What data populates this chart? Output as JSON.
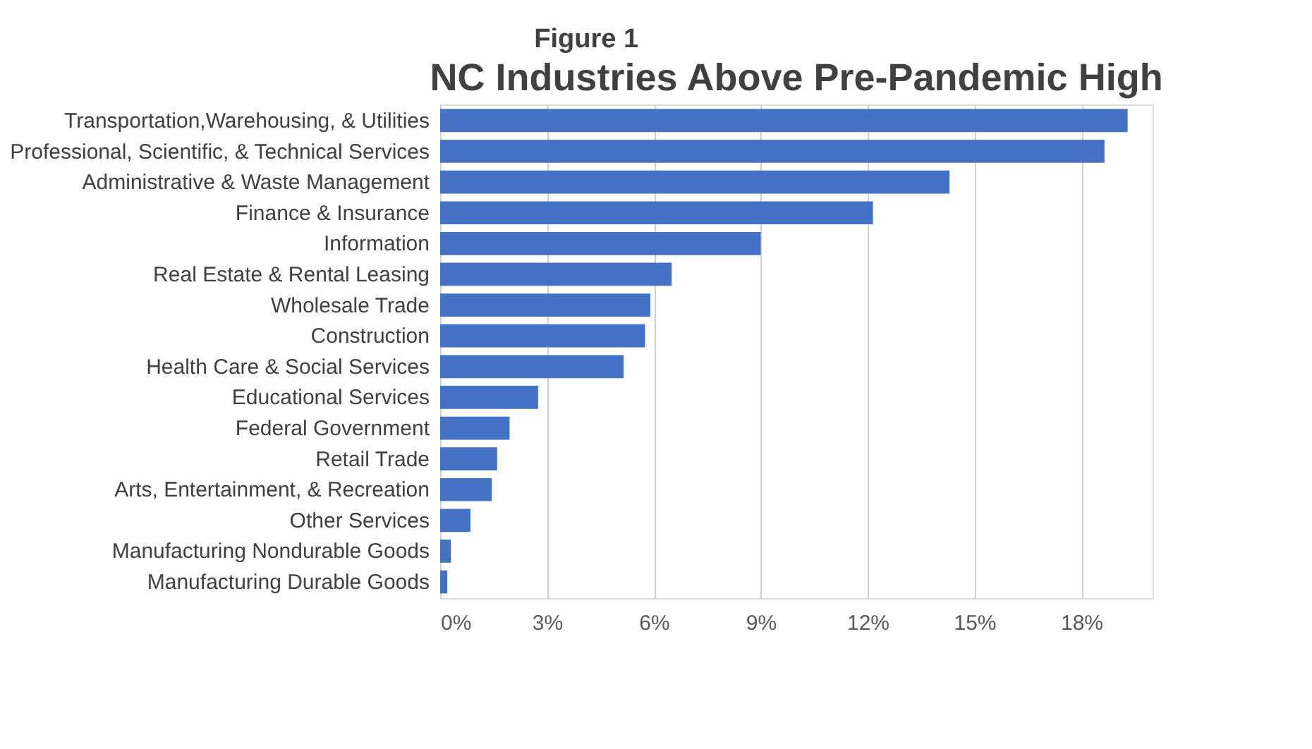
{
  "chart_data": {
    "type": "bar",
    "orientation": "horizontal",
    "subtitle": "Figure 1",
    "title": "NC Industries Above Pre-Pandemic High",
    "categories": [
      "Transportation,Warehousing, & Utilities",
      "Professional, Scientific, & Technical Services",
      "Administrative & Waste Management",
      "Finance & Insurance",
      "Information",
      "Real Estate & Rental Leasing",
      "Wholesale Trade",
      "Construction",
      "Health Care & Social Services",
      "Educational Services",
      "Federal Government",
      "Retail Trade",
      "Arts, Entertainment, & Recreation",
      "Other Services",
      "Manufacturing Nondurable Goods",
      "Manufacturing Durable Goods"
    ],
    "values": [
      19.3,
      18.65,
      14.3,
      12.15,
      9.0,
      6.5,
      5.9,
      5.75,
      5.15,
      2.75,
      1.95,
      1.6,
      1.45,
      0.85,
      0.3,
      0.2
    ],
    "color": "#4472c4",
    "xlim": [
      0,
      20
    ],
    "xticks": [
      {
        "value": 0,
        "label": "0%"
      },
      {
        "value": 3,
        "label": "3%"
      },
      {
        "value": 6,
        "label": "6%"
      },
      {
        "value": 9,
        "label": "9%"
      },
      {
        "value": 12,
        "label": "12%"
      },
      {
        "value": 15,
        "label": "15%"
      },
      {
        "value": 18,
        "label": "18%"
      }
    ],
    "grid": "x"
  }
}
